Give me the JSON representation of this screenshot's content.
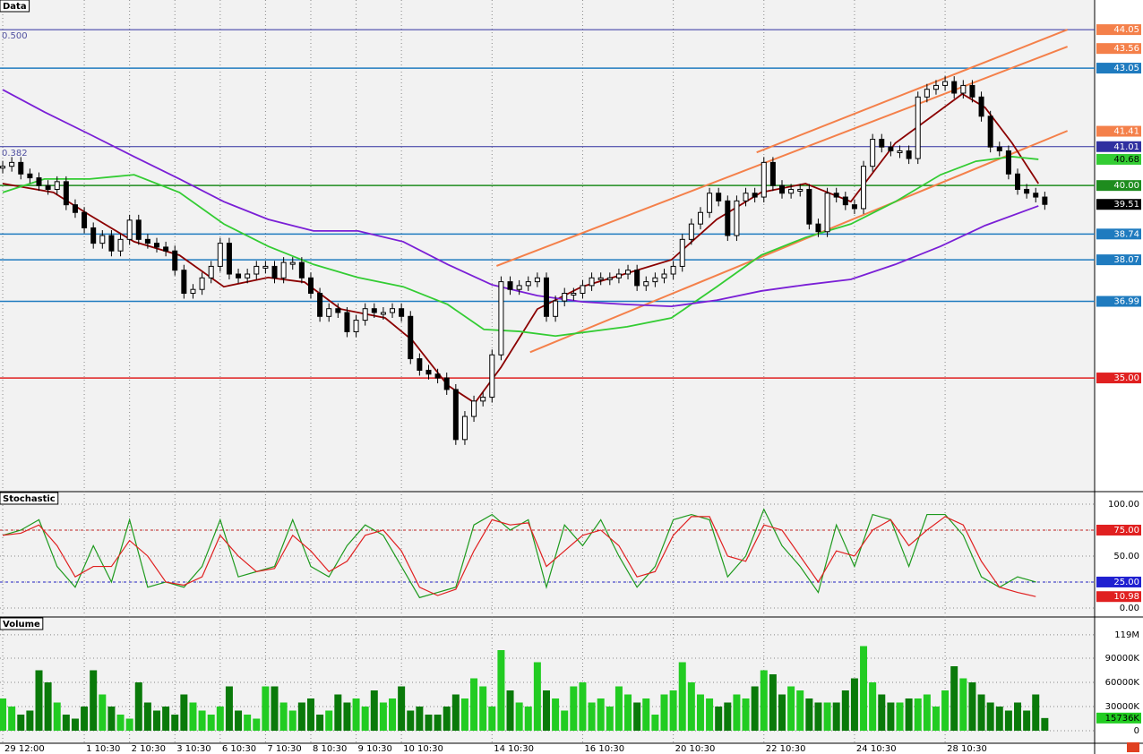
{
  "chart_data": [
    {
      "type": "price",
      "title": "Data",
      "xticks": [
        {
          "value": 0,
          "label": "29 12:00"
        },
        {
          "value": 9,
          "label": "1 10:30"
        },
        {
          "value": 14,
          "label": "2 10:30"
        },
        {
          "value": 19,
          "label": "3 10:30"
        },
        {
          "value": 24,
          "label": "6 10:30"
        },
        {
          "value": 29,
          "label": "7 10:30"
        },
        {
          "value": 34,
          "label": "8 10:30"
        },
        {
          "value": 39,
          "label": "9 10:30"
        },
        {
          "value": 44,
          "label": "10 10:30"
        },
        {
          "value": 54,
          "label": "14 10:30"
        },
        {
          "value": 64,
          "label": "16 10:30"
        },
        {
          "value": 74,
          "label": "20 10:30"
        },
        {
          "value": 84,
          "label": "22 10:30"
        },
        {
          "value": 94,
          "label": "24 10:30"
        },
        {
          "value": 104,
          "label": "28 10:30"
        }
      ],
      "xlim": [
        -0.3,
        120.5
      ],
      "ylim": [
        32.07,
        44.82
      ],
      "values": [
        40.5,
        40.6,
        40.3,
        40.2,
        40.0,
        39.9,
        40.1,
        39.5,
        39.3,
        38.9,
        38.5,
        38.7,
        38.3,
        38.6,
        39.1,
        38.6,
        38.5,
        38.4,
        38.3,
        37.8,
        37.2,
        37.3,
        37.6,
        37.9,
        38.5,
        37.7,
        37.6,
        37.7,
        37.9,
        37.9,
        37.6,
        38.0,
        38.0,
        37.6,
        37.2,
        36.6,
        36.8,
        36.7,
        36.2,
        36.5,
        36.8,
        36.7,
        36.7,
        36.8,
        36.6,
        35.5,
        35.2,
        35.1,
        35.0,
        34.7,
        33.4,
        34.0,
        34.4,
        34.5,
        35.6,
        37.5,
        37.3,
        37.4,
        37.5,
        37.6,
        36.6,
        37.0,
        37.2,
        37.2,
        37.4,
        37.6,
        37.6,
        37.6,
        37.7,
        37.8,
        37.4,
        37.5,
        37.6,
        37.7,
        37.9,
        38.6,
        39.0,
        39.3,
        39.8,
        39.6,
        38.7,
        39.6,
        39.8,
        39.7,
        40.6,
        40.0,
        39.8,
        39.9,
        39.9,
        39.0,
        38.8,
        39.8,
        39.7,
        39.5,
        39.4,
        40.5,
        41.2,
        41.0,
        40.9,
        40.9,
        40.7,
        42.3,
        42.5,
        42.6,
        42.7,
        42.4,
        42.6,
        42.3,
        41.8,
        41.0,
        40.9,
        40.3,
        39.9,
        39.8,
        39.7,
        39.51
      ],
      "color": "#000000",
      "series": [
        {
          "color": "#8b0000",
          "x": [
            0,
            5.6,
            9.6,
            14.5,
            19.5,
            24.4,
            29.3,
            33.3,
            37.3,
            42.2,
            45.2,
            49.1,
            52.1,
            55.0,
            59.0,
            63.9,
            68.9,
            73.8,
            78.8,
            83.7,
            88.6,
            93.6,
            98.5,
            102.5,
            105.9,
            108.4,
            111.4,
            114.3
          ],
          "values": [
            40.05,
            39.82,
            39.23,
            38.54,
            38.19,
            37.37,
            37.61,
            37.49,
            36.79,
            36.56,
            35.98,
            34.81,
            34.35,
            35.28,
            36.79,
            37.37,
            37.72,
            38.07,
            39.12,
            39.82,
            40.05,
            39.58,
            41.1,
            41.79,
            42.38,
            42.03,
            41.1,
            40.05
          ]
        },
        {
          "color": "#33cc33",
          "x": [
            0,
            4.6,
            9.6,
            14.5,
            19.5,
            24.4,
            29.3,
            34.3,
            39.2,
            44.2,
            49.1,
            53.1,
            57.0,
            61.0,
            68.9,
            73.8,
            78.8,
            83.7,
            88.6,
            93.6,
            98.5,
            103.5,
            107.4,
            111.4,
            114.3
          ],
          "values": [
            39.82,
            40.17,
            40.17,
            40.28,
            39.82,
            39.0,
            38.42,
            37.95,
            37.61,
            37.37,
            36.91,
            36.26,
            36.21,
            36.09,
            36.33,
            36.56,
            37.37,
            38.19,
            38.65,
            39.0,
            39.58,
            40.28,
            40.63,
            40.75,
            40.68
          ]
        },
        {
          "color": "#7a1fd6",
          "x": [
            0,
            4.6,
            9.6,
            14.5,
            19.5,
            24.4,
            29.3,
            34.3,
            39.2,
            44.2,
            49.1,
            54.0,
            59.0,
            63.9,
            68.9,
            73.8,
            78.8,
            83.7,
            88.6,
            93.6,
            98.5,
            103.5,
            108.4,
            114.3
          ],
          "values": [
            42.49,
            41.91,
            41.33,
            40.75,
            40.17,
            39.58,
            39.12,
            38.82,
            38.82,
            38.54,
            37.95,
            37.42,
            37.14,
            36.98,
            36.91,
            36.86,
            37.02,
            37.26,
            37.42,
            37.56,
            37.95,
            38.42,
            38.96,
            39.47
          ]
        }
      ],
      "trendlines": [
        {
          "color": "#f4804a",
          "x": [
            54.5,
            117.5
          ],
          "values": [
            37.91,
            43.61
          ]
        },
        {
          "color": "#f4804a",
          "x": [
            83.2,
            117.5
          ],
          "values": [
            40.86,
            44.05
          ]
        },
        {
          "color": "#f4804a",
          "x": [
            58.2,
            117.5
          ],
          "values": [
            35.67,
            41.42
          ]
        }
      ],
      "hlines": [
        {
          "value": 44.05,
          "color": "#3030a0",
          "label": "0.500"
        },
        {
          "value": 43.05,
          "color": "#1f7bbf"
        },
        {
          "value": 41.01,
          "color": "#3030a0",
          "label": "0.382"
        },
        {
          "value": 40.0,
          "color": "#1e8c1e"
        },
        {
          "value": 38.74,
          "color": "#1f7bbf"
        },
        {
          "value": 38.07,
          "color": "#1f7bbf"
        },
        {
          "value": 36.99,
          "color": "#1f7bbf"
        },
        {
          "value": 35.0,
          "color": "#e02020"
        }
      ],
      "tags": [
        {
          "value": 44.05,
          "color": "#f4804a"
        },
        {
          "value": 43.56,
          "color": "#f4804a"
        },
        {
          "value": 43.05,
          "color": "#1f7bbf"
        },
        {
          "value": 41.41,
          "color": "#f4804a"
        },
        {
          "value": 41.01,
          "color": "#3030a0"
        },
        {
          "value": 40.68,
          "color": "#33cc33"
        },
        {
          "value": 40,
          "label": "40.00",
          "color": "#1e8c1e"
        },
        {
          "value": 39.51,
          "color": "#000000"
        },
        {
          "value": 38.74,
          "color": "#1f7bbf"
        },
        {
          "value": 38.07,
          "color": "#1f7bbf"
        },
        {
          "value": 36.99,
          "color": "#1f7bbf"
        },
        {
          "value": 35,
          "label": "35.00",
          "color": "#e02020"
        }
      ]
    },
    {
      "type": "stochastic",
      "title": "Stochastic",
      "ylim": [
        -7.8,
        111.2
      ],
      "yticks": [
        {
          "value": 100,
          "label": "100.00"
        },
        {
          "value": 75,
          "label": "75.00"
        },
        {
          "value": 50,
          "label": "50.00"
        },
        {
          "value": 25,
          "label": "25.00"
        },
        {
          "value": 0,
          "label": "0.00"
        }
      ],
      "x": [
        0,
        2,
        4,
        6,
        8,
        10,
        12,
        14,
        16,
        18,
        20,
        22,
        24,
        26,
        28,
        30,
        32,
        34,
        36,
        38,
        40,
        42,
        44,
        46,
        48,
        50,
        52,
        54,
        56,
        58,
        60,
        62,
        64,
        66,
        68,
        70,
        72,
        74,
        76,
        78,
        80,
        82,
        84,
        86,
        88,
        90,
        92,
        94,
        96,
        98,
        100,
        102,
        104,
        106,
        108,
        110,
        112,
        114
      ],
      "series": [
        {
          "color": "#1e9a1e",
          "values": [
            70,
            75,
            85,
            40,
            20,
            60,
            25,
            85,
            20,
            25,
            20,
            40,
            85,
            30,
            35,
            40,
            85,
            40,
            30,
            60,
            80,
            70,
            40,
            10,
            15,
            20,
            80,
            90,
            75,
            85,
            20,
            80,
            60,
            85,
            50,
            20,
            40,
            85,
            90,
            85,
            30,
            50,
            95,
            60,
            40,
            15,
            80,
            40,
            90,
            85,
            40,
            90,
            90,
            70,
            30,
            20,
            30,
            25
          ]
        },
        {
          "color": "#e02020",
          "values": [
            70,
            72,
            80,
            60,
            30,
            40,
            40,
            65,
            50,
            25,
            22,
            30,
            70,
            50,
            35,
            38,
            70,
            55,
            35,
            45,
            70,
            75,
            55,
            20,
            12,
            18,
            55,
            85,
            80,
            82,
            40,
            55,
            70,
            75,
            60,
            30,
            35,
            70,
            88,
            88,
            50,
            45,
            80,
            75,
            50,
            25,
            55,
            50,
            75,
            85,
            60,
            75,
            88,
            80,
            45,
            20,
            15,
            10.98
          ]
        }
      ],
      "hlines": [
        {
          "value": 75,
          "color": "#c02020"
        },
        {
          "value": 25,
          "color": "#2020c0"
        }
      ],
      "tags": [
        {
          "value": 75,
          "label": "75.00",
          "color": "#e02020"
        },
        {
          "value": 25,
          "label": "25.00",
          "color": "#2020d0"
        },
        {
          "value": 10.98,
          "color": "#e02020"
        }
      ]
    },
    {
      "type": "volume",
      "title": "Volume",
      "ylim": [
        -15556,
        140000
      ],
      "yticks": [
        {
          "value": 119000,
          "label": "119M"
        },
        {
          "value": 90000,
          "label": "90000K"
        },
        {
          "value": 60000,
          "label": "60000K"
        },
        {
          "value": 30000,
          "label": "30000K"
        },
        0
      ],
      "colors": [
        "#22cc22",
        "#0a7a0a"
      ],
      "values": [
        40000,
        30000,
        20000,
        25000,
        75000,
        60000,
        35000,
        20000,
        15000,
        30000,
        75000,
        45000,
        30000,
        20000,
        15000,
        60000,
        35000,
        25000,
        30000,
        20000,
        45000,
        35000,
        25000,
        20000,
        30000,
        55000,
        25000,
        20000,
        15000,
        55000,
        55000,
        35000,
        25000,
        35000,
        40000,
        20000,
        25000,
        45000,
        35000,
        40000,
        30000,
        50000,
        35000,
        40000,
        55000,
        25000,
        30000,
        20000,
        20000,
        30000,
        45000,
        40000,
        65000,
        55000,
        30000,
        100000,
        50000,
        35000,
        30000,
        85000,
        50000,
        40000,
        25000,
        55000,
        60000,
        35000,
        40000,
        30000,
        55000,
        45000,
        35000,
        40000,
        20000,
        45000,
        50000,
        85000,
        60000,
        45000,
        40000,
        30000,
        35000,
        45000,
        40000,
        55000,
        75000,
        70000,
        45000,
        55000,
        50000,
        40000,
        35000,
        35000,
        35000,
        50000,
        65000,
        105000,
        60000,
        45000,
        35000,
        35000,
        40000,
        40000,
        45000,
        30000,
        50000,
        80000,
        65000,
        60000,
        45000,
        35000,
        30000,
        25000,
        35000,
        25000,
        45000,
        15736
      ],
      "tags": [
        {
          "value": 15736,
          "label": "15736K",
          "color": "#22cc22"
        }
      ]
    }
  ]
}
